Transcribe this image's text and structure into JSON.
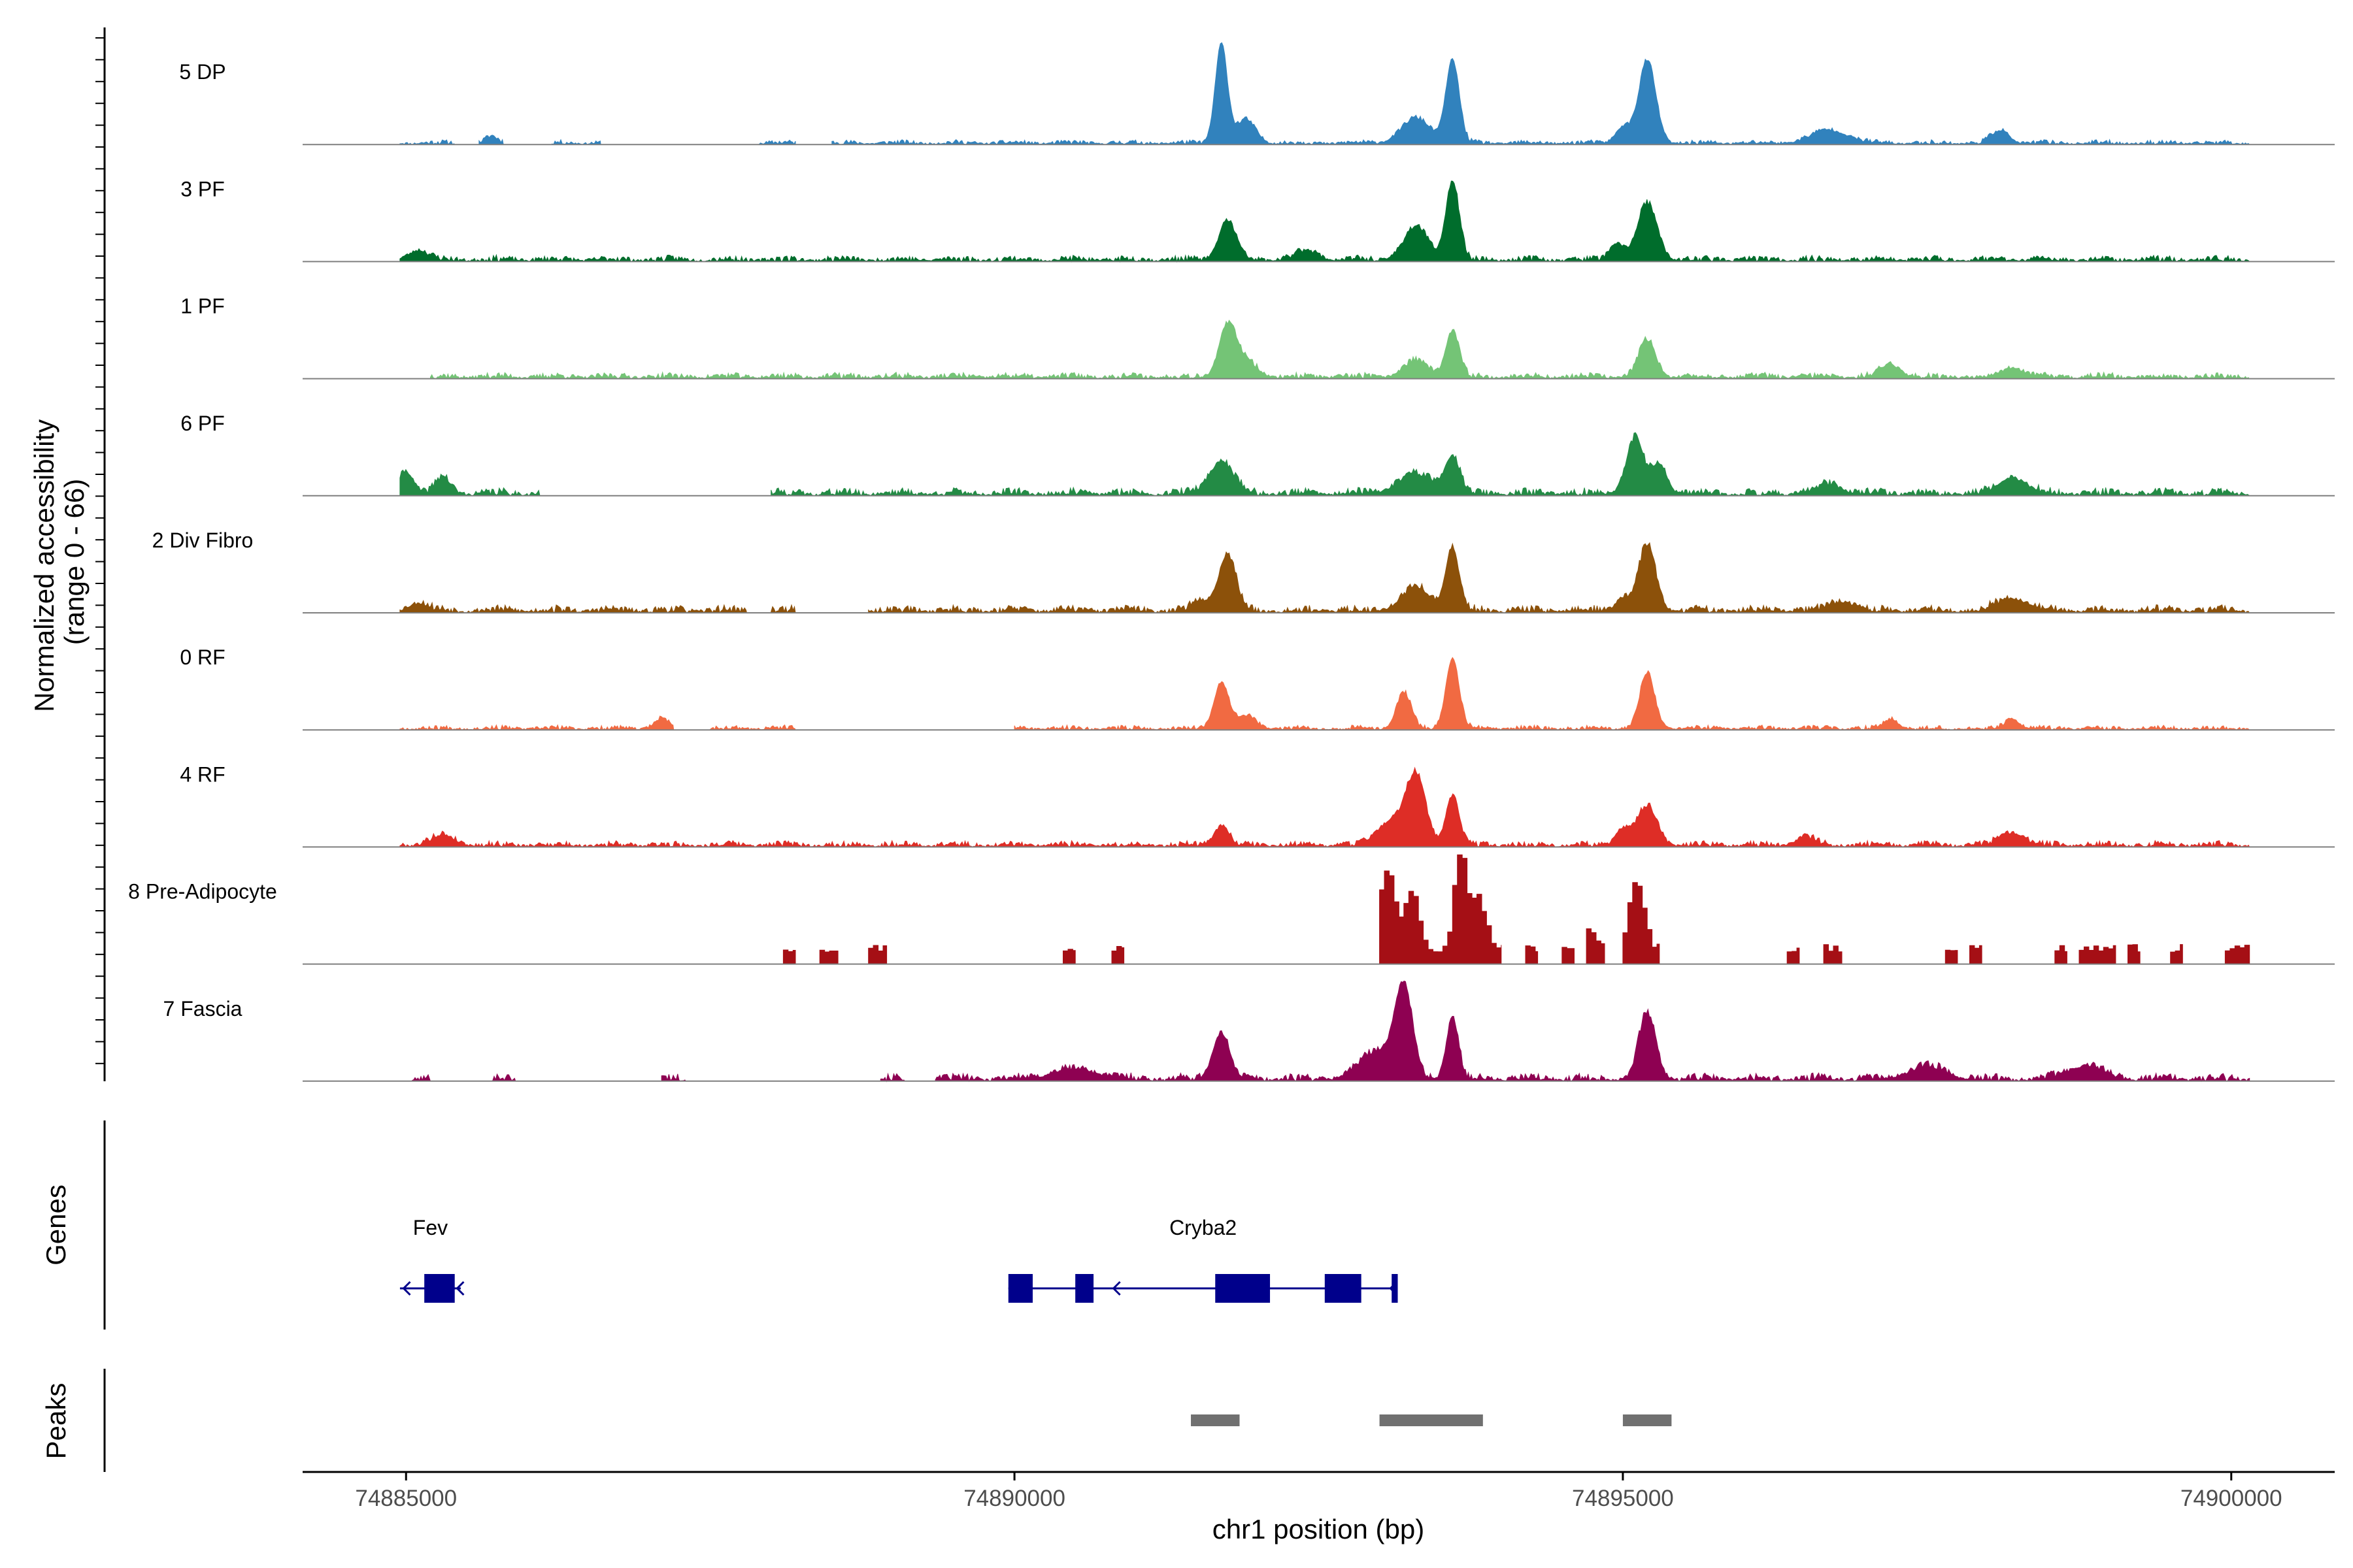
{
  "chart_data": {
    "type": "area",
    "title": "",
    "ylabel": "Normalized accessibility\n(range 0 - 66)",
    "xlabel": "chr1 position (bp)",
    "xlim": [
      74884150,
      74900850
    ],
    "x_ticks": [
      74885000,
      74890000,
      74895000,
      74900000
    ],
    "x_tick_labels": [
      "74885000",
      "74890000",
      "74895000",
      "74900000"
    ],
    "ylim": [
      0,
      66
    ],
    "region": [
      74884950,
      74900150
    ],
    "tracks": [
      {
        "name": "5 DP",
        "color": "#3182bd",
        "style": "smooth",
        "peaks": [
          [
            74891700,
            60,
            50
          ],
          [
            74891900,
            14,
            80
          ],
          [
            74893300,
            15,
            120
          ],
          [
            74893600,
            50,
            55
          ],
          [
            74895000,
            10,
            60
          ],
          [
            74895200,
            50,
            70
          ],
          [
            74898100,
            8,
            70
          ],
          [
            74896700,
            8,
            150
          ],
          [
            74885700,
            4,
            50
          ]
        ],
        "noise": 3,
        "seed": 11,
        "segments": [
          [
            74884950,
            74885400
          ],
          [
            74885600,
            74885800
          ],
          [
            74886200,
            74886600
          ],
          [
            74887900,
            74888200
          ],
          [
            74888500,
            74900150
          ]
        ]
      },
      {
        "name": "3 PF",
        "color": "#006d2c",
        "style": "smooth",
        "peaks": [
          [
            74891750,
            24,
            70
          ],
          [
            74893300,
            20,
            100
          ],
          [
            74893600,
            48,
            55
          ],
          [
            74895200,
            34,
            80
          ],
          [
            74894950,
            10,
            60
          ],
          [
            74885100,
            6,
            80
          ],
          [
            74892400,
            6,
            90
          ]
        ],
        "noise": 4,
        "seed": 23,
        "segments": [
          [
            74884950,
            74900150
          ]
        ]
      },
      {
        "name": "1 PF",
        "color": "#74c476",
        "style": "smooth",
        "peaks": [
          [
            74891750,
            30,
            70
          ],
          [
            74891900,
            10,
            90
          ],
          [
            74893300,
            10,
            100
          ],
          [
            74893600,
            28,
            55
          ],
          [
            74895200,
            22,
            70
          ],
          [
            74897200,
            8,
            80
          ],
          [
            74898200,
            6,
            90
          ]
        ],
        "noise": 4,
        "seed": 37,
        "segments": [
          [
            74885200,
            74900150
          ]
        ]
      },
      {
        "name": "6 PF",
        "color": "#238b45",
        "style": "smooth",
        "peaks": [
          [
            74885000,
            14,
            60
          ],
          [
            74885300,
            10,
            60
          ],
          [
            74891700,
            20,
            100
          ],
          [
            74893300,
            12,
            150
          ],
          [
            74893600,
            22,
            60
          ],
          [
            74895100,
            34,
            70
          ],
          [
            74895300,
            18,
            60
          ],
          [
            74898200,
            10,
            120
          ],
          [
            74896700,
            6,
            100
          ]
        ],
        "noise": 5,
        "seed": 41,
        "segments": [
          [
            74884950,
            74886100
          ],
          [
            74888000,
            74900150
          ]
        ]
      },
      {
        "name": "2 Div Fibro",
        "color": "#8c510a",
        "style": "smooth",
        "peaks": [
          [
            74891750,
            34,
            70
          ],
          [
            74891550,
            6,
            80
          ],
          [
            74893300,
            14,
            120
          ],
          [
            74893600,
            38,
            55
          ],
          [
            74895200,
            40,
            70
          ],
          [
            74895000,
            8,
            60
          ],
          [
            74896800,
            6,
            100
          ],
          [
            74898200,
            8,
            120
          ],
          [
            74885100,
            5,
            80
          ]
        ],
        "noise": 5,
        "seed": 53,
        "segments": [
          [
            74884950,
            74887800
          ],
          [
            74888000,
            74888200
          ],
          [
            74888800,
            74900150
          ]
        ]
      },
      {
        "name": "0 RF",
        "color": "#f16a42",
        "style": "smooth",
        "peaks": [
          [
            74891700,
            28,
            60
          ],
          [
            74891900,
            8,
            80
          ],
          [
            74893200,
            22,
            60
          ],
          [
            74893600,
            42,
            55
          ],
          [
            74895200,
            34,
            60
          ],
          [
            74887100,
            6,
            60
          ],
          [
            74897200,
            6,
            60
          ],
          [
            74898200,
            6,
            60
          ]
        ],
        "noise": 3,
        "seed": 67,
        "segments": [
          [
            74884950,
            74887200
          ],
          [
            74887500,
            74888200
          ],
          [
            74890000,
            74900150
          ]
        ]
      },
      {
        "name": "4 RF",
        "color": "#de2d26",
        "style": "smooth",
        "peaks": [
          [
            74891700,
            12,
            60
          ],
          [
            74893300,
            40,
            80
          ],
          [
            74893100,
            15,
            120
          ],
          [
            74893600,
            30,
            55
          ],
          [
            74895200,
            24,
            80
          ],
          [
            74895000,
            10,
            60
          ],
          [
            74885300,
            6,
            100
          ],
          [
            74898200,
            8,
            100
          ],
          [
            74896500,
            5,
            80
          ]
        ],
        "noise": 4,
        "seed": 79,
        "segments": [
          [
            74884950,
            74900150
          ]
        ]
      },
      {
        "name": "8 Pre-Adipocyte",
        "color": "#a50f15",
        "style": "blocky",
        "peaks": [
          [
            74893050,
            48,
            60
          ],
          [
            74893250,
            36,
            60
          ],
          [
            74893650,
            60,
            50
          ],
          [
            74893800,
            30,
            60
          ],
          [
            74895100,
            42,
            60
          ],
          [
            74894700,
            10,
            60
          ]
        ],
        "noise": 12,
        "seed": 97,
        "segments": [
          [
            74888100,
            74888200
          ],
          [
            74888400,
            74888550
          ],
          [
            74888800,
            74888950
          ],
          [
            74890400,
            74890500
          ],
          [
            74890800,
            74890900
          ],
          [
            74893000,
            74894000
          ],
          [
            74894200,
            74894300
          ],
          [
            74894500,
            74894600
          ],
          [
            74894700,
            74894850
          ],
          [
            74895000,
            74895300
          ],
          [
            74896350,
            74896450
          ],
          [
            74896650,
            74896800
          ],
          [
            74897650,
            74897750
          ],
          [
            74897850,
            74897950
          ],
          [
            74898550,
            74898650
          ],
          [
            74898750,
            74899050
          ],
          [
            74899150,
            74899250
          ],
          [
            74899500,
            74899600
          ],
          [
            74899950,
            74900150
          ]
        ]
      },
      {
        "name": "7 Fascia",
        "color": "#8e0152",
        "style": "smooth",
        "peaks": [
          [
            74891700,
            28,
            70
          ],
          [
            74893200,
            52,
            70
          ],
          [
            74893000,
            18,
            150
          ],
          [
            74893600,
            38,
            50
          ],
          [
            74895200,
            40,
            70
          ],
          [
            74890500,
            6,
            200
          ],
          [
            74897500,
            8,
            150
          ],
          [
            74898800,
            8,
            150
          ]
        ],
        "noise": 5,
        "seed": 101,
        "segments": [
          [
            74885050,
            74885200
          ],
          [
            74885700,
            74885900
          ],
          [
            74887100,
            74887300
          ],
          [
            74888900,
            74889100
          ],
          [
            74889350,
            74900150
          ]
        ]
      }
    ],
    "genes": [
      {
        "name": "Fev",
        "strand": "-",
        "start": 74884950,
        "end": 74885450,
        "exons": [
          [
            74885150,
            74885400
          ]
        ],
        "label_pos": 74885200
      },
      {
        "name": "Cryba2",
        "strand": "-",
        "start": 74889950,
        "end": 74893150,
        "exons": [
          [
            74889950,
            74890150
          ],
          [
            74890500,
            74890650
          ],
          [
            74891650,
            74892100
          ],
          [
            74892550,
            74892850
          ],
          [
            74893100,
            74893150
          ]
        ],
        "label_pos": 74891550
      }
    ],
    "peaks_track": [
      [
        74891450,
        74891850
      ],
      [
        74893000,
        74893850
      ],
      [
        74895000,
        74895400
      ]
    ],
    "side_labels": {
      "genes": "Genes",
      "peaks": "Peaks"
    }
  }
}
